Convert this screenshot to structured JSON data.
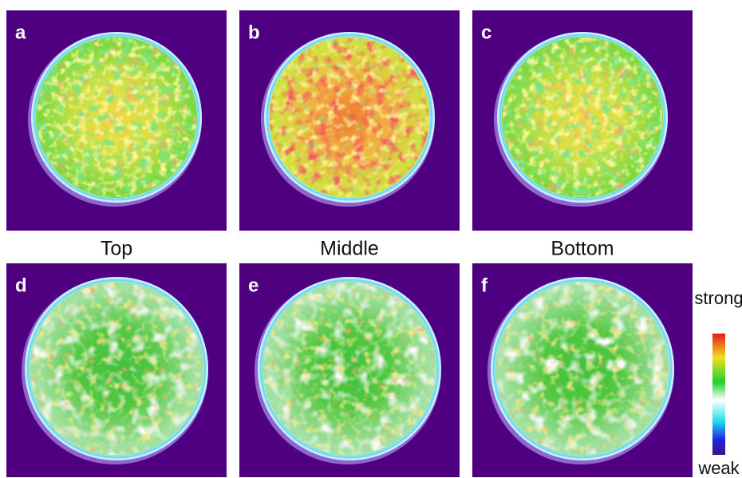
{
  "panels": [
    {
      "label": "a"
    },
    {
      "label": "b"
    },
    {
      "label": "c"
    },
    {
      "label": "d"
    },
    {
      "label": "e"
    },
    {
      "label": "f"
    }
  ],
  "columns": [
    "Top",
    "Middle",
    "Bottom"
  ],
  "colorbar": {
    "max_label": "strong",
    "min_label": "weak"
  }
}
